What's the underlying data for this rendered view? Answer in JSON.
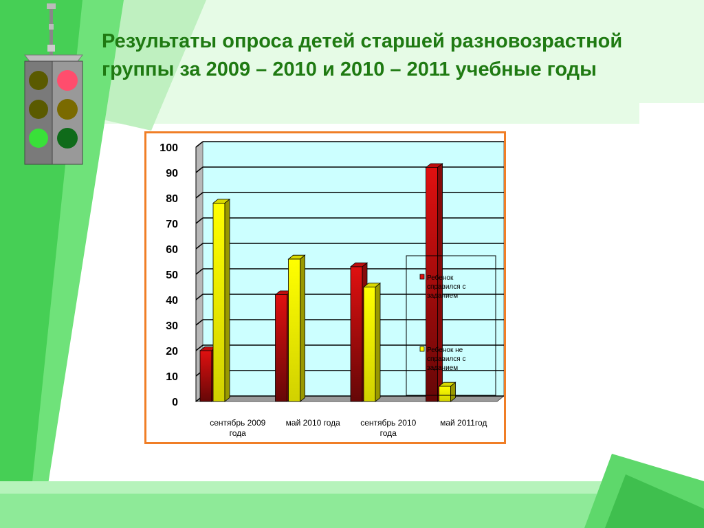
{
  "slide": {
    "title": "Результаты опроса детей старшей разновозрастной группы за 2009 – 2010 и 2010 – 2011 учебные годы"
  },
  "chart_data": {
    "type": "bar",
    "title": "",
    "xlabel": "",
    "ylabel": "",
    "ylim": [
      0,
      100
    ],
    "yticks": [
      "0",
      "10",
      "20",
      "30",
      "40",
      "50",
      "60",
      "70",
      "80",
      "90",
      "100"
    ],
    "grid": true,
    "legend_position": "right",
    "categories": [
      [
        "сентябрь 2009",
        "года"
      ],
      [
        "май 2010 года"
      ],
      [
        "сентябрь 2010",
        "года"
      ],
      [
        "май 2011год"
      ]
    ],
    "series": [
      {
        "name": [
          "Ребенок",
          "справился  с",
          "заданием"
        ],
        "color": "#e01010",
        "values": [
          20,
          42,
          53,
          92
        ]
      },
      {
        "name": [
          "Ребенок не",
          "справился  с",
          "заданием"
        ],
        "color": "#ffff00",
        "values": [
          78,
          56,
          45,
          6
        ]
      }
    ]
  }
}
